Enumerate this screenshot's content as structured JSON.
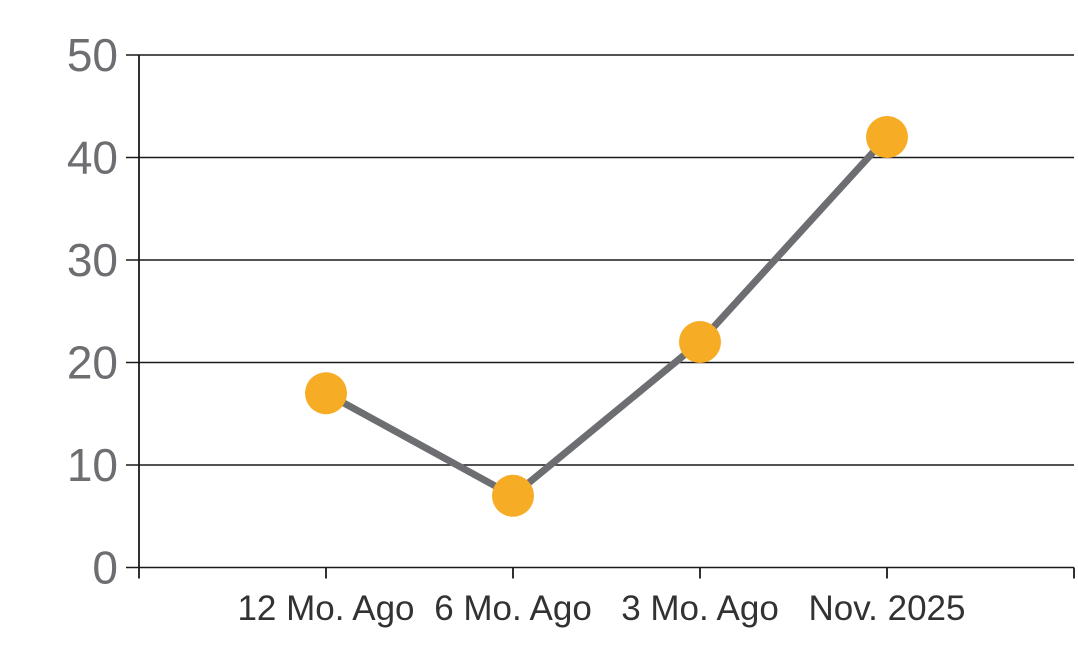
{
  "chart_data": {
    "type": "line",
    "title": "",
    "xlabel": "",
    "ylabel": "",
    "categories": [
      "12 Mo. Ago",
      "6 Mo. Ago",
      "3 Mo. Ago",
      "Nov. 2025"
    ],
    "values": [
      17,
      7,
      22,
      42
    ],
    "ylim": [
      0,
      50
    ],
    "yticks": [
      0,
      10,
      20,
      30,
      40,
      50
    ],
    "grid": true,
    "legend": false,
    "marker": "circle",
    "colors": {
      "marker": "#F7AC25",
      "line": "#6D6E71",
      "grid": "#1A1A1A",
      "axis": "#1A1A1A",
      "y_tick_label": "#6D6E71",
      "x_tick_label": "#333132",
      "background": "#FFFFFF"
    }
  }
}
